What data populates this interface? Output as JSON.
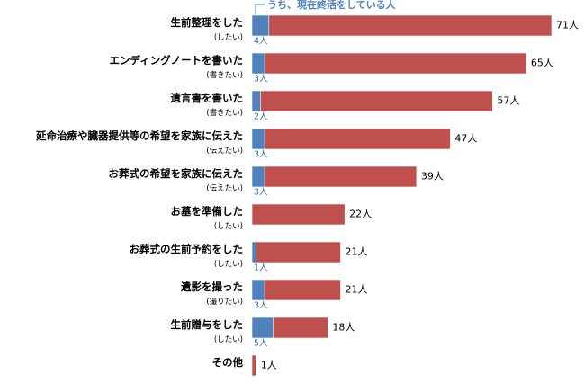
{
  "chart_data": {
    "type": "bar",
    "orientation": "horizontal",
    "categories": [
      "生前整理をした",
      "エンディングノートを書いた",
      "遺言書を書いた",
      "延命治療や臓器提供等の希望を家族に伝えた",
      "お葬式の希望を家族に伝えた",
      "お墓を準備した",
      "お葬式の生前予約をした",
      "遺影を撮った",
      "生前贈与をした",
      "その他"
    ],
    "subcategories": [
      "(したい)",
      "(書きたい)",
      "(書きたい)",
      "(伝えたい)",
      "(伝えたい)",
      "(したい)",
      "(したい)",
      "(撮りたい)",
      "(したい)",
      null
    ],
    "series": [
      {
        "name": null,
        "color": "#c0504d",
        "values": [
          71,
          65,
          57,
          47,
          39,
          22,
          21,
          21,
          18,
          1
        ],
        "value_labels": [
          "71人",
          "65人",
          "57人",
          "47人",
          "39人",
          "22人",
          "21人",
          "21人",
          "18人",
          "1人"
        ]
      },
      {
        "name": "うち、現在終活をしている人",
        "color": "#4f81bd",
        "values": [
          4,
          3,
          2,
          3,
          3,
          null,
          1,
          3,
          5,
          null
        ],
        "value_labels": [
          "4人",
          "3人",
          "2人",
          "3人",
          "3人",
          null,
          "1人",
          "3人",
          "5人",
          null
        ]
      }
    ]
  }
}
